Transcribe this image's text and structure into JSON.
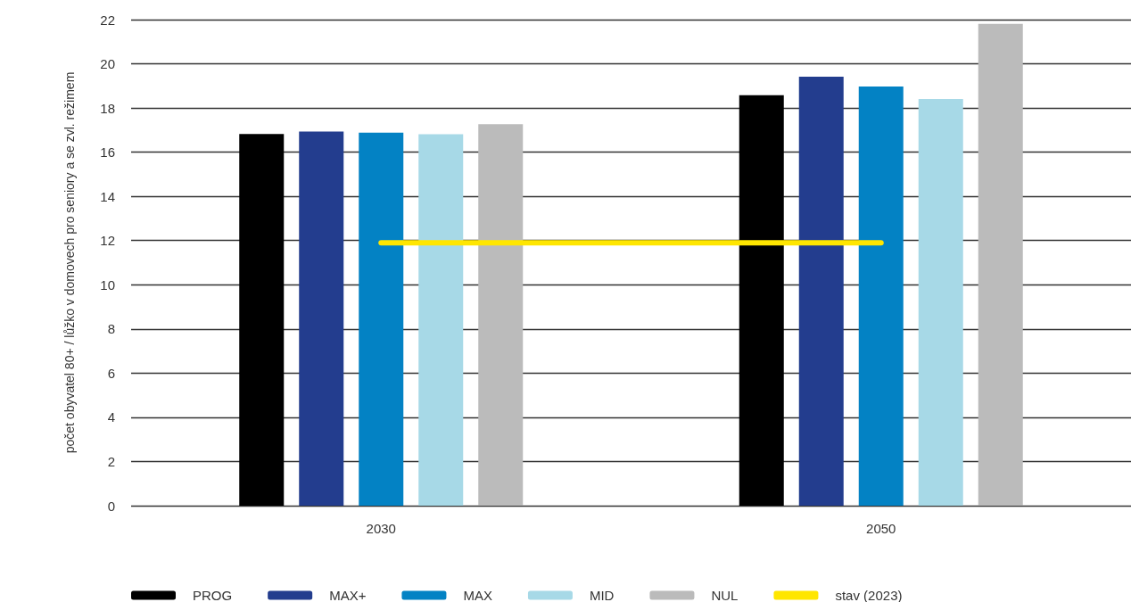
{
  "chart_data": {
    "type": "bar",
    "ylabel": "počet obyvatel 80+ / lůžko v domovech pro seniory a se zvl. režimem",
    "categories": [
      "2030",
      "2050"
    ],
    "series": [
      {
        "name": "PROG",
        "color": "#000000",
        "values": [
          16.82,
          18.58
        ]
      },
      {
        "name": "MAX+",
        "color": "#233d8e",
        "values": [
          16.93,
          19.42
        ]
      },
      {
        "name": "MAX",
        "color": "#0382c4",
        "values": [
          16.88,
          18.97
        ]
      },
      {
        "name": "MID",
        "color": "#a7d9e7",
        "values": [
          16.81,
          18.41
        ]
      },
      {
        "name": "NUL",
        "color": "#bbbbbb",
        "values": [
          17.27,
          21.81
        ]
      },
      {
        "name": "stav (2023)",
        "type": "line",
        "color": "#ffe600",
        "values": [
          11.9,
          11.9
        ]
      }
    ],
    "ylim": [
      0,
      22
    ],
    "yticks": [
      0,
      2,
      4,
      6,
      8,
      10,
      12,
      14,
      16,
      18,
      20,
      22
    ],
    "grid": "y",
    "legend": "bottom",
    "marker": "none",
    "line_style": "solid"
  }
}
